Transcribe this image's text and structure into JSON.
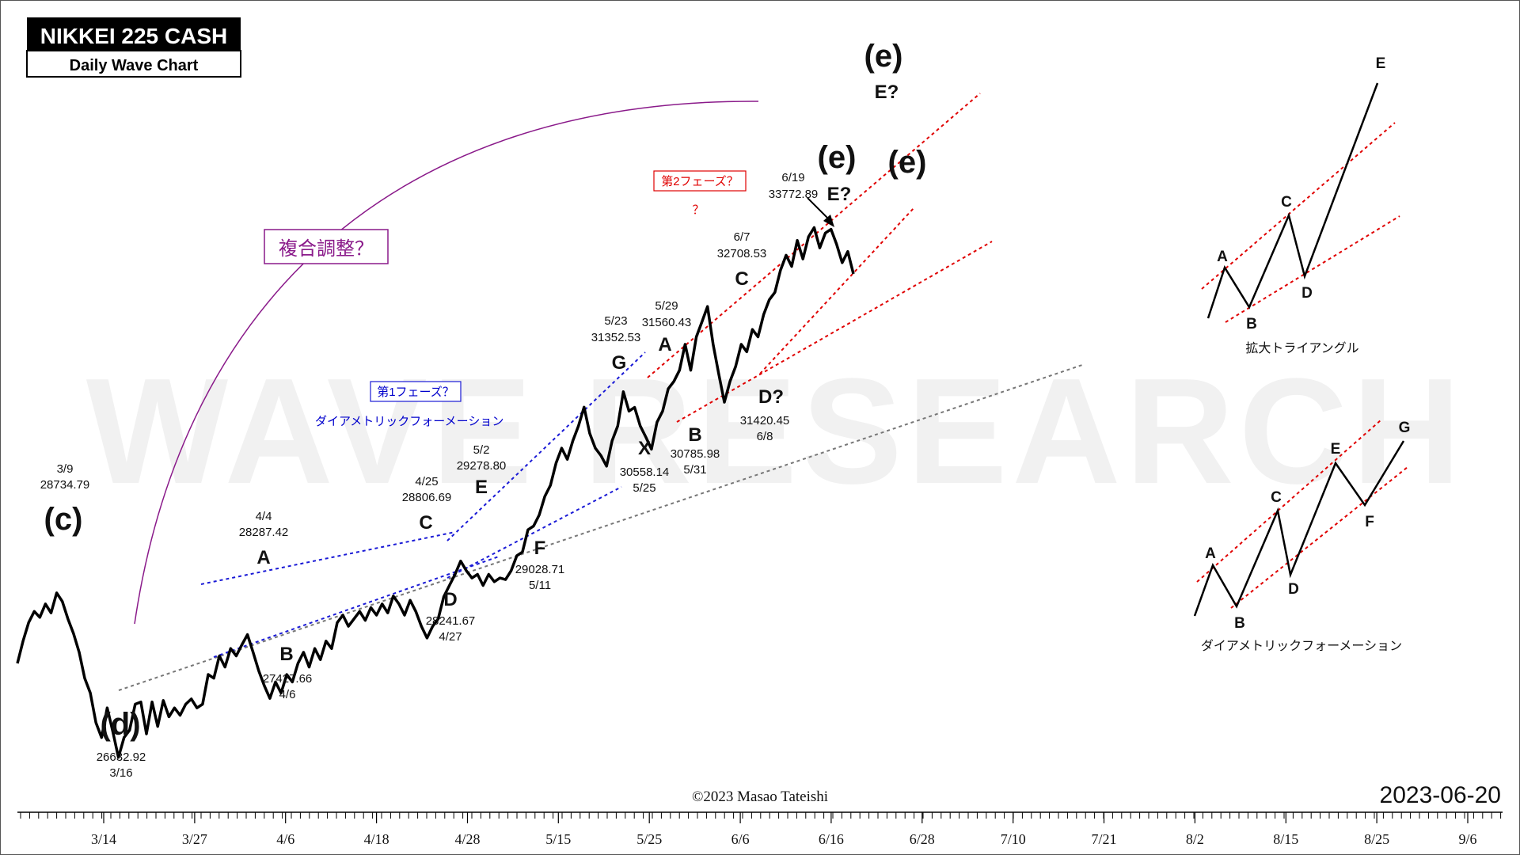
{
  "header": {
    "title": "NIKKEI 225 CASH",
    "subtitle": "Daily Wave Chart"
  },
  "footer": {
    "copyright": "©2023 Masao Tateishi",
    "date": "2023-06-20"
  },
  "watermark": "WAVE RESEARCH",
  "colors": {
    "price": "#000000",
    "blue_trend": "#1a1ad6",
    "red_trend": "#e00000",
    "gray_trend": "#777777",
    "purple": "#8a1a8a"
  },
  "chart_data": {
    "type": "line",
    "x_tick_labels": [
      "3/14",
      "3/27",
      "4/6",
      "4/18",
      "4/28",
      "5/15",
      "5/25",
      "6/6",
      "6/16",
      "6/28",
      "7/10",
      "7/21",
      "8/2",
      "8/15",
      "8/25",
      "9/6"
    ],
    "ylim": [
      26000,
      36200
    ],
    "series": [
      {
        "values": [
          27900,
          28200,
          28450,
          28600,
          28520,
          28700,
          28580,
          28850,
          28734.79,
          28500,
          28300,
          28050,
          27700,
          27500,
          27100,
          26900,
          27300,
          26980,
          26632.92,
          26900,
          27000,
          27350,
          27380,
          26950,
          27380,
          27050,
          27400,
          27180,
          27300,
          27200,
          27350,
          27420,
          27300,
          27350,
          27750,
          27700,
          28000,
          27850,
          28100,
          28000,
          28150,
          28287.42,
          28050,
          27800,
          27600,
          27427.66,
          27650,
          27500,
          27750,
          27650,
          27900,
          28050,
          27850,
          28100,
          27950,
          28200,
          28100,
          28450,
          28550,
          28400,
          28500,
          28600,
          28480,
          28650,
          28550,
          28700,
          28580,
          28806.69,
          28700,
          28550,
          28750,
          28600,
          28400,
          28241.67,
          28400,
          28500,
          28800,
          28950,
          29100,
          29278.8,
          29150,
          29050,
          29100,
          28950,
          29100,
          29000,
          29050,
          29028.71,
          29150,
          29350,
          29400,
          29700,
          29750,
          29900,
          30150,
          30300,
          30600,
          30800,
          30650,
          30900,
          31100,
          31352.53,
          31000,
          30800,
          30700,
          30558.14,
          30900,
          31100,
          31560.43,
          31300,
          31350,
          31100,
          30950,
          30785.98,
          31150,
          31300,
          31600,
          31700,
          31850,
          32200,
          31850,
          32300,
          32500,
          32708.53,
          32200,
          31800,
          31420.45,
          31700,
          31900,
          32200,
          32100,
          32400,
          32300,
          32600,
          32800,
          32900,
          33200,
          33400,
          33250,
          33600,
          33350,
          33650,
          33772.89,
          33500,
          33700,
          33750,
          33550,
          33300,
          33450,
          33150
        ]
      }
    ],
    "annotations": {
      "price_labels": [
        {
          "date": "3/9",
          "price": "28734.79"
        },
        {
          "date": "3/16",
          "price": "26632.92"
        },
        {
          "date": "4/4",
          "price": "28287.42"
        },
        {
          "date": "4/6",
          "price": "27427.66"
        },
        {
          "date": "4/25",
          "price": "28806.69"
        },
        {
          "date": "4/27",
          "price": "28241.67"
        },
        {
          "date": "5/2",
          "price": "29278.80"
        },
        {
          "date": "5/11",
          "price": "29028.71"
        },
        {
          "date": "5/23",
          "price": "31352.53"
        },
        {
          "date": "5/25",
          "price": "30558.14"
        },
        {
          "date": "5/29",
          "price": "31560.43"
        },
        {
          "date": "5/31",
          "price": "30785.98"
        },
        {
          "date": "6/7",
          "price": "32708.53"
        },
        {
          "date": "6/8",
          "price": "31420.45"
        },
        {
          "date": "6/19",
          "price": "33772.89"
        }
      ],
      "wave_labels": {
        "c": "(c)",
        "d": "(d)",
        "e1": "(e)",
        "e2": "(e)",
        "e3": "(e)",
        "e_q1": "E?",
        "e_q2": "E?",
        "A1": "A",
        "B1": "B",
        "C1": "C",
        "D1": "D",
        "E1": "E",
        "F1": "F",
        "G1": "G",
        "X": "X",
        "A2": "A",
        "B2": "B",
        "C2": "C",
        "D2": "D?"
      },
      "boxes": {
        "complex": "複合調整？",
        "phase1": "第1フェーズ？",
        "phase2": "第2フェーズ？"
      },
      "texts": {
        "diametric": "ダイアメトリックフォーメーション",
        "question": "？"
      }
    },
    "inset_expanding": {
      "caption": "拡大トライアングル",
      "points": [
        {
          "label": "A"
        },
        {
          "label": "B"
        },
        {
          "label": "C"
        },
        {
          "label": "D"
        },
        {
          "label": "E"
        }
      ]
    },
    "inset_diametric": {
      "caption": "ダイアメトリックフォーメーション",
      "points": [
        {
          "label": "A"
        },
        {
          "label": "B"
        },
        {
          "label": "C"
        },
        {
          "label": "D"
        },
        {
          "label": "E"
        },
        {
          "label": "F"
        },
        {
          "label": "G"
        }
      ]
    }
  }
}
